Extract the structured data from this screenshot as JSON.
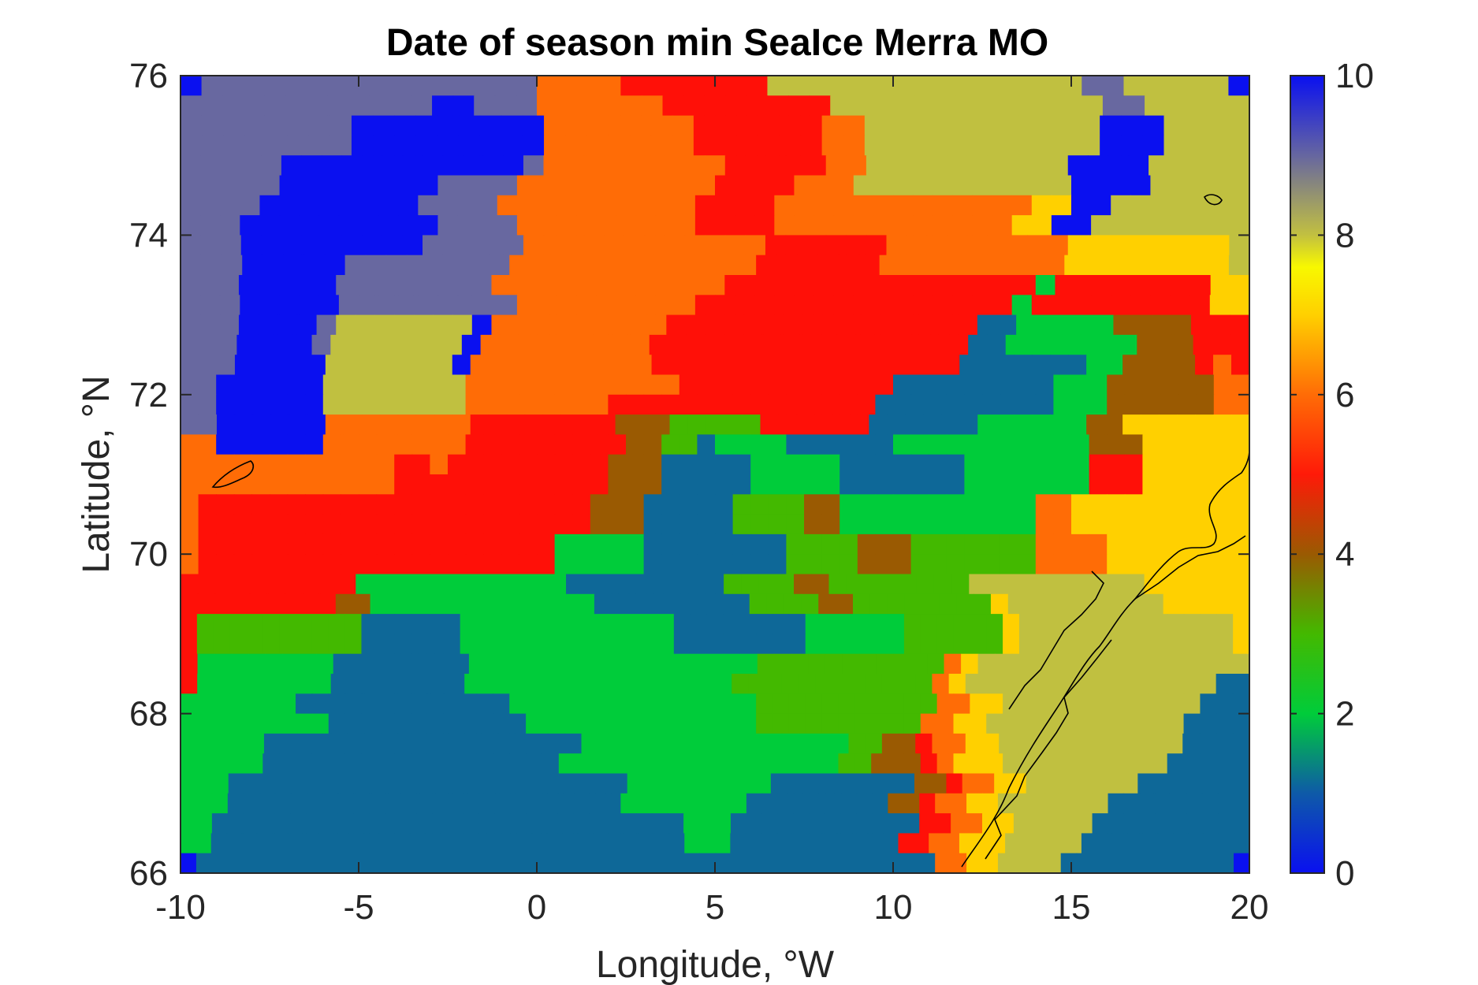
{
  "chart_data": {
    "type": "heatmap",
    "title": "Date of season min SeaIce Merra MO",
    "xlabel": "Longitude, °W",
    "ylabel": "Latitude, °N",
    "xlim": [
      -10,
      20
    ],
    "ylim": [
      66,
      76
    ],
    "x_ticks": [
      "-10",
      "-5",
      "0",
      "5",
      "10",
      "15",
      "20"
    ],
    "y_ticks": [
      "66",
      "68",
      "70",
      "72",
      "74",
      "76"
    ],
    "colorbar": {
      "range": [
        0,
        10
      ],
      "tick_labels": [
        "0",
        "2",
        "4",
        "6",
        "8",
        "10"
      ],
      "stops": [
        {
          "value": 0,
          "color": "#0a10f0"
        },
        {
          "value": 1,
          "color": "#0e5aa8"
        },
        {
          "value": 2,
          "color": "#00cc3a"
        },
        {
          "value": 3,
          "color": "#43b900"
        },
        {
          "value": 4,
          "color": "#9a5a02"
        },
        {
          "value": 5,
          "color": "#ff1a08"
        },
        {
          "value": 6,
          "color": "#ff6c06"
        },
        {
          "value": 7,
          "color": "#ffd000"
        },
        {
          "value": 7.6,
          "color": "#f8f800"
        },
        {
          "value": 8,
          "color": "#c2c040"
        },
        {
          "value": 9,
          "color": "#6666a0"
        },
        {
          "value": 10,
          "color": "#0a10f0"
        }
      ]
    },
    "categories_legend": {
      "0": "#0a10f0",
      "1": "#0e6898",
      "2": "#00cc3a",
      "3": "#43b900",
      "4": "#9a5a02",
      "5": "#ff1008",
      "6": "#ff6c06",
      "7": "#ffd000",
      "8": "#c0c040",
      "9": "#6868a0",
      "10": "#0a10f0"
    },
    "grid_resolution": {
      "lon_step": 0.625,
      "lat_step": 0.5
    },
    "rows_note": "rows ordered north (75.75N) to south (66.25N); each row string lists cells from -10 to 20 longitude; digit = value, 'A' = 10",
    "rows": [
      "A9999999999999999666655555558888888888888889988888A",
      "999999999999009996666665555555588888888888889988888",
      "99999999000000000666666655555566888888888880008888",
      "99999999000000000666666655555566888888888880008888",
      "99999000000000000966666666655555668888888888000088888",
      "999990000000099996666666666555566688888888888000088888",
      "999900000000999966666666665555666666666666677008888888",
      "999000000000099996666666665555666666666666770088888888",
      "99900000000099999666666666666555555666666666777777778",
      "9990000099999999666666666666555555666666666777777778",
      "9990000099999999666666666666555555555555555525555555577",
      "999000009999999996666666665555555555555555255555555577",
      "9990000988888880666666666555555555555555511222224444555",
      "999000098888888066666666655555555555555555112222222444555",
      "99900000888888806666666666555555555555555551111111224444565",
      "990000008888888866666666666655555555555511111111122244444466",
      "990000008888888866666666555555555555555111111111122244444466",
      "99000000666666665555555544433333555555111111222222447777777",
      "660000006666666655555555544331222211111122222222222444777777",
      "666666666666556555555555444111112222211111112222222555777777",
      "666666666666555555555555444111112222211111112222222555777777",
      "655555555555555555555554441111133334422222222222667777777777",
      "655555555555555555555554441111133334422222222222667777777777",
      "655555555555555555555222221111111133334443333333666677777777",
      "655555555555555555555222221111111133334443333333666677777777",
      "5555555555222222222222111111111333344333333338888888888777777",
      "55555555544222222222222211111111133334433333333788888888877777",
      "53333333333111111222222222222211111111222222333333788888888888887",
      "53333333333111111222222222222211111111222222333333788888888888887",
      "522222222111111112222222222222222233333333333678888888888888888",
      "5222222221111111122222222222222223333333333336788888888888888811",
      "22222221111111111111222222222222222333333333336677888888888888111",
      "22222222211111111111122222222222222333333333366778888888888881111",
      "2222211111111111111111112222222222222222334456677888888888881111",
      "22222111111111111111111222222222222222223344456777888888888811111",
      "2221111111111111111111111111222222222111111111445667788888881111111",
      "22211111111111111111111111112222222211111111144566778888888111111111",
      "22111111111111111111111111111111222111111111111556677888881111111111",
      "2211111111111111111111111111111112221111111111155667778888811111111111",
      "A111111111111111111111111111111111111111111111116677888811111111111A"
    ]
  }
}
